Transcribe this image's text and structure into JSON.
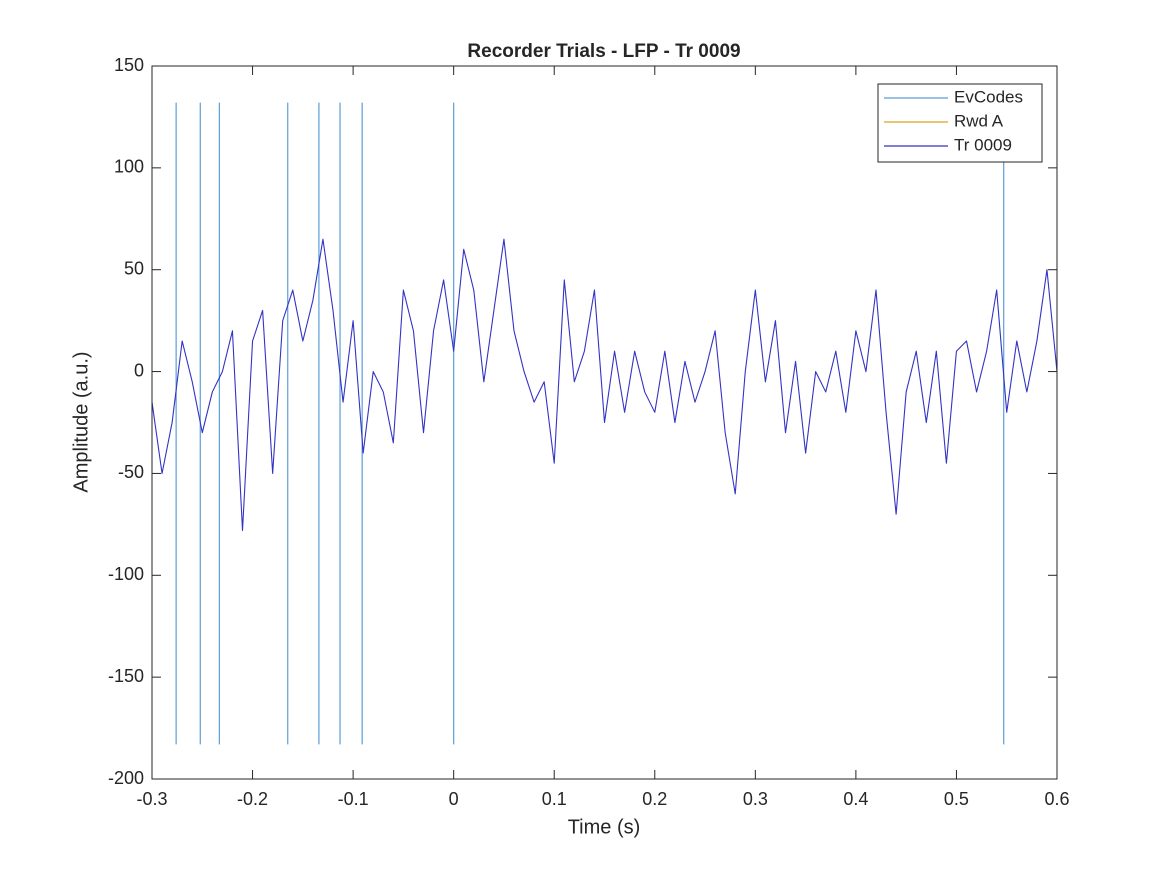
{
  "chart_data": {
    "type": "line",
    "title": "Recorder Trials - LFP - Tr 0009",
    "x_label": "Time (s)",
    "y_label": "Amplitude (a.u.)",
    "xlim": [
      -0.3,
      0.6
    ],
    "ylim": [
      -200,
      150
    ],
    "xticks": [
      -0.3,
      -0.2,
      -0.1,
      0,
      0.1,
      0.2,
      0.3,
      0.4,
      0.5,
      0.6
    ],
    "yticks": [
      -200,
      -150,
      -100,
      -50,
      0,
      50,
      100,
      150
    ],
    "grid": false,
    "legend": "northeast",
    "series": [
      {
        "name": "EvCodes",
        "color": "#5a9fd8",
        "kind": "event",
        "x": [
          -0.276,
          -0.252,
          -0.233,
          -0.165,
          -0.134,
          -0.113,
          -0.091,
          0,
          0.547
        ],
        "y_top": 132,
        "y_bottom": -183
      },
      {
        "name": "Rwd A",
        "color": "#d9a020",
        "x": [],
        "values": []
      },
      {
        "name": "Tr 0009",
        "color": "#3333c4",
        "x": [
          -0.3,
          -0.29,
          -0.28,
          -0.27,
          -0.26,
          -0.25,
          -0.24,
          -0.23,
          -0.22,
          -0.21,
          -0.2,
          -0.19,
          -0.18,
          -0.17,
          -0.16,
          -0.15,
          -0.14,
          -0.13,
          -0.12,
          -0.11,
          -0.1,
          -0.09,
          -0.08,
          -0.07,
          -0.06,
          -0.05,
          -0.04,
          -0.03,
          -0.02,
          -0.01,
          0,
          0.01,
          0.02,
          0.03,
          0.04,
          0.05,
          0.06,
          0.07,
          0.08,
          0.09,
          0.1,
          0.11,
          0.12,
          0.13,
          0.14,
          0.15,
          0.16,
          0.17,
          0.18,
          0.19,
          0.2,
          0.21,
          0.22,
          0.23,
          0.24,
          0.25,
          0.26,
          0.27,
          0.28,
          0.29,
          0.3,
          0.31,
          0.32,
          0.33,
          0.34,
          0.35,
          0.36,
          0.37,
          0.38,
          0.39,
          0.4,
          0.41,
          0.42,
          0.43,
          0.44,
          0.45,
          0.46,
          0.47,
          0.48,
          0.49,
          0.5,
          0.51,
          0.52,
          0.53,
          0.54,
          0.55,
          0.56,
          0.57,
          0.58,
          0.59,
          0.6
        ],
        "values": [
          -15,
          -50,
          -25,
          15,
          -5,
          -30,
          -10,
          0,
          20,
          -78,
          15,
          30,
          -50,
          25,
          40,
          15,
          35,
          65,
          30,
          -15,
          25,
          -40,
          0,
          -10,
          -35,
          40,
          20,
          -30,
          20,
          45,
          10,
          60,
          40,
          -5,
          30,
          65,
          20,
          0,
          -15,
          -5,
          -45,
          45,
          -5,
          10,
          40,
          -25,
          10,
          -20,
          10,
          -10,
          -20,
          10,
          -25,
          5,
          -15,
          0,
          20,
          -30,
          -60,
          0,
          40,
          -5,
          25,
          -30,
          5,
          -40,
          0,
          -10,
          10,
          -20,
          20,
          0,
          40,
          -20,
          -70,
          -10,
          10,
          -25,
          10,
          -45,
          10,
          15,
          -10,
          10,
          40,
          -20,
          15,
          -10,
          15,
          50,
          0
        ]
      }
    ]
  }
}
